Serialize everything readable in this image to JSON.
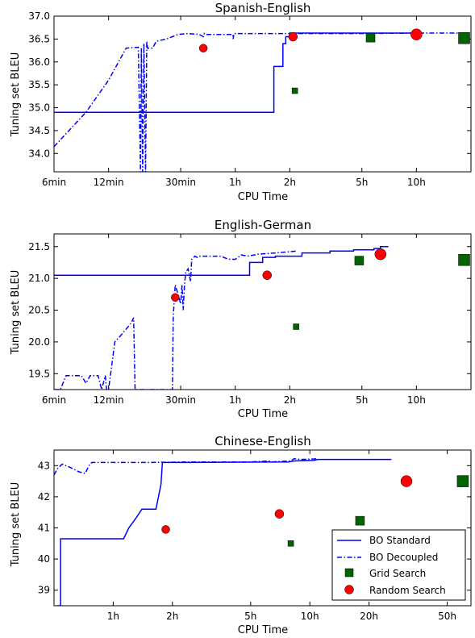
{
  "colors": {
    "bo": "#0000ff",
    "grid": "#006400",
    "random": "#ff0000",
    "axes": "#000000"
  },
  "legend": {
    "placement": "lower-right",
    "entries": [
      {
        "label": "BO Standard",
        "marker": "solid-line"
      },
      {
        "label": "BO Decoupled",
        "marker": "dashdot-line"
      },
      {
        "label": "Grid Search",
        "marker": "square"
      },
      {
        "label": "Random Search",
        "marker": "circle"
      }
    ]
  },
  "chart_data": [
    {
      "type": "line",
      "title": "Spanish-English",
      "xlabel": "CPU Time",
      "ylabel": "Tuning set BLEU",
      "xscale": "log",
      "x_unit": "minutes",
      "xlim": [
        6,
        1200
      ],
      "ylim": [
        33.6,
        37.0
      ],
      "xticks": [
        {
          "value": 6,
          "label": "6min"
        },
        {
          "value": 12,
          "label": "12min"
        },
        {
          "value": 30,
          "label": "30min"
        },
        {
          "value": 60,
          "label": "1h"
        },
        {
          "value": 120,
          "label": "2h"
        },
        {
          "value": 300,
          "label": "5h"
        },
        {
          "value": 600,
          "label": "10h"
        }
      ],
      "yticks": [
        {
          "value": 34.0,
          "label": "34.0"
        },
        {
          "value": 34.5,
          "label": "34.5"
        },
        {
          "value": 35.0,
          "label": "35.0"
        },
        {
          "value": 35.5,
          "label": "35.5"
        },
        {
          "value": 36.0,
          "label": "36.0"
        },
        {
          "value": 36.5,
          "label": "36.5"
        },
        {
          "value": 37.0,
          "label": "37.0"
        }
      ],
      "series": [
        {
          "name": "BO Standard",
          "style": "solid",
          "x": [
            6,
            98,
            98,
            110,
            110,
            114,
            114,
            120,
            120,
            600
          ],
          "y": [
            34.9,
            34.9,
            35.9,
            35.9,
            36.4,
            36.4,
            36.55,
            36.55,
            36.63,
            36.63
          ]
        },
        {
          "name": "BO Decoupled",
          "style": "dashdot",
          "x": [
            6,
            9,
            12,
            15,
            17.5,
            18,
            18.2,
            18.5,
            18.8,
            19.2,
            19.5,
            19.7,
            21,
            22,
            25,
            29,
            33,
            38,
            40,
            40.5,
            41,
            50,
            58,
            58.5,
            59,
            65,
            80,
            110,
            120,
            300,
            600,
            1100
          ],
          "y": [
            34.15,
            34.9,
            35.6,
            36.3,
            36.32,
            33.6,
            36.3,
            33.6,
            36.4,
            33.6,
            36.45,
            36.3,
            36.3,
            36.45,
            36.5,
            36.6,
            36.62,
            36.6,
            36.55,
            36.62,
            36.6,
            36.6,
            36.6,
            36.5,
            36.62,
            36.62,
            36.62,
            36.62,
            36.62,
            36.62,
            36.63,
            36.63
          ]
        },
        {
          "name": "Grid Search",
          "style": "square",
          "points": [
            {
              "x": 128,
              "y": 35.37,
              "size": 7
            },
            {
              "x": 335,
              "y": 36.53,
              "size": 11
            },
            {
              "x": 1100,
              "y": 36.52,
              "size": 14
            }
          ]
        },
        {
          "name": "Random Search",
          "style": "circle",
          "points": [
            {
              "x": 40,
              "y": 36.3,
              "size": 10
            },
            {
              "x": 125,
              "y": 36.55,
              "size": 11
            },
            {
              "x": 600,
              "y": 36.6,
              "size": 14
            }
          ]
        }
      ]
    },
    {
      "type": "line",
      "title": "English-German",
      "xlabel": "CPU Time",
      "ylabel": "Tuning set BLEU",
      "xscale": "log",
      "x_unit": "minutes",
      "xlim": [
        6,
        1200
      ],
      "ylim": [
        19.25,
        21.7
      ],
      "xticks": [
        {
          "value": 6,
          "label": "6min"
        },
        {
          "value": 12,
          "label": "12min"
        },
        {
          "value": 30,
          "label": "30min"
        },
        {
          "value": 60,
          "label": "1h"
        },
        {
          "value": 120,
          "label": "2h"
        },
        {
          "value": 300,
          "label": "5h"
        },
        {
          "value": 600,
          "label": "10h"
        }
      ],
      "yticks": [
        {
          "value": 19.5,
          "label": "19.5"
        },
        {
          "value": 20.0,
          "label": "20.0"
        },
        {
          "value": 20.5,
          "label": "20.5"
        },
        {
          "value": 21.0,
          "label": "21.0"
        },
        {
          "value": 21.5,
          "label": "21.5"
        }
      ],
      "series": [
        {
          "name": "BO Standard",
          "style": "solid",
          "x": [
            6,
            72,
            72,
            85,
            85,
            100,
            100,
            140,
            140,
            200,
            200,
            270,
            270,
            350,
            350,
            380,
            380,
            420
          ],
          "y": [
            21.05,
            21.05,
            21.25,
            21.25,
            21.33,
            21.33,
            21.35,
            21.35,
            21.4,
            21.4,
            21.43,
            21.43,
            21.45,
            21.45,
            21.47,
            21.47,
            21.5,
            21.5
          ]
        },
        {
          "name": "BO Decoupled",
          "style": "dashdot",
          "x": [
            6,
            6.5,
            7,
            8.5,
            9,
            9.5,
            10.5,
            11,
            11.5,
            11.7,
            12,
            13,
            14,
            15.5,
            16,
            16.5,
            16.8,
            17,
            27,
            27.3,
            28,
            30,
            30.5,
            31,
            31.5,
            32,
            33,
            34,
            34.5,
            36,
            37,
            38,
            40,
            50,
            55,
            60,
            65,
            70,
            80,
            100,
            130
          ],
          "y": [
            19.25,
            19.25,
            19.47,
            19.47,
            19.35,
            19.47,
            19.47,
            19.25,
            19.47,
            19.25,
            19.25,
            20.0,
            20.1,
            20.25,
            20.3,
            20.38,
            19.25,
            19.25,
            19.25,
            20.4,
            20.9,
            20.6,
            20.9,
            20.5,
            20.9,
            21.1,
            21.15,
            20.95,
            21.3,
            21.35,
            21.33,
            21.35,
            21.35,
            21.35,
            21.3,
            21.3,
            21.37,
            21.35,
            21.38,
            21.4,
            21.43
          ]
        },
        {
          "name": "Grid Search",
          "style": "square",
          "points": [
            {
              "x": 130,
              "y": 20.24,
              "size": 7
            },
            {
              "x": 290,
              "y": 21.28,
              "size": 11
            },
            {
              "x": 1100,
              "y": 21.29,
              "size": 14
            }
          ]
        },
        {
          "name": "Random Search",
          "style": "circle",
          "points": [
            {
              "x": 28,
              "y": 20.7,
              "size": 10
            },
            {
              "x": 90,
              "y": 21.05,
              "size": 11
            },
            {
              "x": 380,
              "y": 21.38,
              "size": 14
            }
          ]
        }
      ]
    },
    {
      "type": "line",
      "title": "Chinese-English",
      "xlabel": "CPU Time",
      "ylabel": "Tuning set BLEU",
      "xscale": "log",
      "x_unit": "hours",
      "xlim": [
        0.5,
        66
      ],
      "ylim": [
        38.5,
        43.5
      ],
      "xticks": [
        {
          "value": 1,
          "label": "1h"
        },
        {
          "value": 2,
          "label": "2h"
        },
        {
          "value": 5,
          "label": "5h"
        },
        {
          "value": 10,
          "label": "10h"
        },
        {
          "value": 20,
          "label": "20h"
        },
        {
          "value": 50,
          "label": "50h"
        }
      ],
      "yticks": [
        {
          "value": 39,
          "label": "39"
        },
        {
          "value": 40,
          "label": "40"
        },
        {
          "value": 41,
          "label": "41"
        },
        {
          "value": 42,
          "label": "42"
        },
        {
          "value": 43,
          "label": "43"
        }
      ],
      "series": [
        {
          "name": "BO Standard",
          "style": "solid",
          "x": [
            0.52,
            0.54,
            0.54,
            1.13,
            1.2,
            1.3,
            1.4,
            1.65,
            1.75,
            1.78,
            2.5,
            7.8,
            8.3,
            10.5,
            11,
            26
          ],
          "y": [
            38.5,
            38.5,
            40.65,
            40.65,
            41.0,
            41.3,
            41.6,
            41.6,
            42.4,
            43.1,
            43.1,
            43.12,
            43.15,
            43.17,
            43.2,
            43.2
          ]
        },
        {
          "name": "BO Decoupled",
          "style": "dashdot",
          "x": [
            0.5,
            0.52,
            0.55,
            0.6,
            0.67,
            0.72,
            0.76,
            0.78,
            0.9,
            1.5,
            2.5,
            5,
            6.2,
            6.4,
            8,
            8.3,
            9,
            11
          ],
          "y": [
            42.7,
            42.9,
            43.05,
            42.95,
            42.8,
            42.75,
            43.05,
            43.1,
            43.1,
            43.1,
            43.12,
            43.12,
            43.15,
            43.12,
            43.15,
            43.22,
            43.2,
            43.22
          ]
        },
        {
          "name": "Grid Search",
          "style": "square",
          "points": [
            {
              "x": 8,
              "y": 40.5,
              "size": 7
            },
            {
              "x": 18,
              "y": 41.23,
              "size": 11
            },
            {
              "x": 60,
              "y": 42.5,
              "size": 14
            }
          ]
        },
        {
          "name": "Random Search",
          "style": "circle",
          "points": [
            {
              "x": 1.85,
              "y": 40.95,
              "size": 10
            },
            {
              "x": 7,
              "y": 41.45,
              "size": 11
            },
            {
              "x": 31,
              "y": 42.5,
              "size": 14
            }
          ]
        }
      ]
    }
  ]
}
